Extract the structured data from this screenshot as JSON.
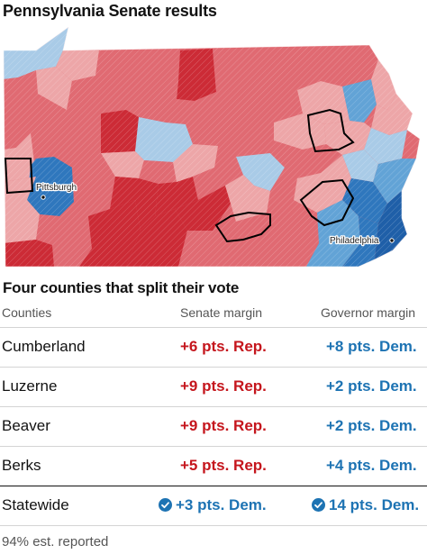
{
  "map": {
    "title": "Pennsylvania Senate results",
    "cities": [
      "Pittsburgh",
      "Philadelphia"
    ],
    "colors": {
      "strong_rep": "#cc2b36",
      "rep": "#e06a72",
      "lean_rep": "#eda6a8",
      "lean_dem": "#a9cbe7",
      "dem": "#62a3d6",
      "strong_dem": "#2f77bd",
      "highlight_outline": "#000000"
    }
  },
  "table": {
    "title": "Four counties that split their vote",
    "headers": {
      "county": "Counties",
      "senate": "Senate margin",
      "governor": "Governor margin"
    },
    "rows": [
      {
        "county": "Cumberland",
        "senate": "+6 pts. Rep.",
        "governor": "+8 pts. Dem."
      },
      {
        "county": "Luzerne",
        "senate": "+9 pts. Rep.",
        "governor": "+2 pts. Dem."
      },
      {
        "county": "Beaver",
        "senate": "+9 pts. Rep.",
        "governor": "+2 pts. Dem."
      },
      {
        "county": "Berks",
        "senate": "+5 pts. Rep.",
        "governor": "+4 pts. Dem."
      }
    ],
    "statewide": {
      "label": "Statewide",
      "senate": "+3 pts. Dem.",
      "governor": "14 pts. Dem.",
      "winner_icon": "check-circle-icon"
    }
  },
  "footnote": "94% est. reported"
}
